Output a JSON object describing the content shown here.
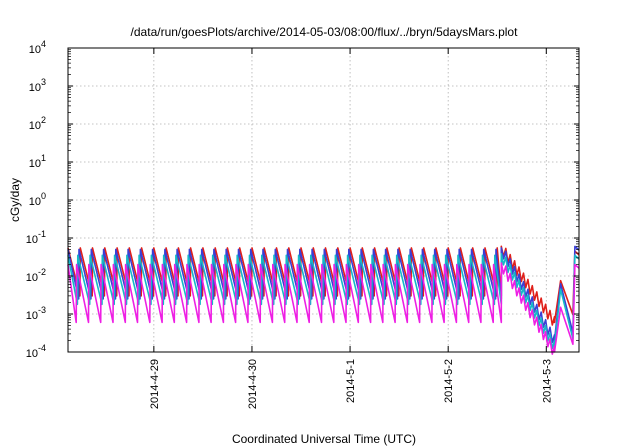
{
  "chart_data": {
    "type": "line",
    "title": "/data/run/goesPlots/archive/2014-05-03/08:00/flux/../bryn/5daysMars.plot",
    "xlabel": "Coordinated Universal Time (UTC)",
    "ylabel": "cGy/day",
    "yscale": "log",
    "ylim": [
      0.0001,
      10000
    ],
    "xlim": [
      "2014-04-28 03:00",
      "2014-05-03 08:00"
    ],
    "x_ticks": [
      "2014-4-29",
      "2014-4-30",
      "2014-5-1",
      "2014-5-2",
      "2014-5-3"
    ],
    "y_ticks": [
      {
        "base": "10",
        "exp": "-4"
      },
      {
        "base": "10",
        "exp": "-3"
      },
      {
        "base": "10",
        "exp": "-2"
      },
      {
        "base": "10",
        "exp": "-1"
      },
      {
        "base": "10",
        "exp": "0"
      },
      {
        "base": "10",
        "exp": "1"
      },
      {
        "base": "10",
        "exp": "2"
      },
      {
        "base": "10",
        "exp": "3"
      },
      {
        "base": "10",
        "exp": "4"
      }
    ],
    "grid": true,
    "legend": "none",
    "pattern": {
      "cycle_hours": 3,
      "steady_until": "2014-05-02 13:00",
      "tail": {
        "drop_to_min": "2014-05-03 02:00",
        "rebound": "2014-05-03 03:30",
        "second_min": "2014-05-03 06:30",
        "spike": "2014-05-03 07:00"
      }
    },
    "series": [
      {
        "color": "#e0201a",
        "peak": 0.055,
        "trough": 0.003,
        "tail_min": 0.0006,
        "end": 0.045
      },
      {
        "color": "#3a3fd6",
        "peak": 0.05,
        "trough": 0.0025,
        "tail_min": 0.0002,
        "end": 0.06
      },
      {
        "color": "#15b8c8",
        "peak": 0.035,
        "trough": 0.0018,
        "tail_min": 0.00014,
        "end": 0.035
      },
      {
        "color": "#ee1fe4",
        "peak": 0.02,
        "trough": 0.0006,
        "tail_min": 0.0001,
        "end": 0.02
      }
    ]
  }
}
